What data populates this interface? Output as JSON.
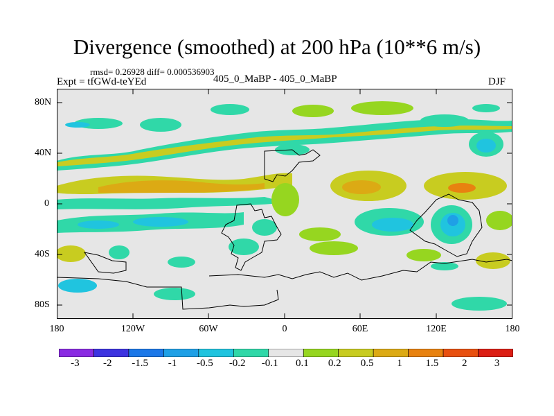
{
  "title": "Divergence (smoothed) at 200 hPa (10**6 m/s)",
  "stats_line": "rmsd= 0.26928  diff= 0.000536903",
  "expt_label": "Expt = tfGWd-teYEd",
  "case_label": "405_0_MaBP - 405_0_MaBP",
  "season_label": "DJF",
  "lat_ticks": [
    {
      "value": 80,
      "label": "80N"
    },
    {
      "value": 40,
      "label": "40N"
    },
    {
      "value": 0,
      "label": "0"
    },
    {
      "value": -40,
      "label": "40S"
    },
    {
      "value": -80,
      "label": "80S"
    }
  ],
  "lon_ticks": [
    {
      "value": -180,
      "label": "180"
    },
    {
      "value": -120,
      "label": "120W"
    },
    {
      "value": -60,
      "label": "60W"
    },
    {
      "value": 0,
      "label": "0"
    },
    {
      "value": 60,
      "label": "60E"
    },
    {
      "value": 120,
      "label": "120E"
    },
    {
      "value": 180,
      "label": "180"
    }
  ],
  "colorbar": {
    "colors": [
      "#8a2be2",
      "#3d33e0",
      "#1c78e8",
      "#1fa0e6",
      "#20c4df",
      "#30d8a8",
      "#e6e6e6",
      "#96d620",
      "#c8cc20",
      "#dcaa14",
      "#e88210",
      "#e85010",
      "#dc1e14"
    ],
    "labels": [
      "-3",
      "-2",
      "-1.5",
      "-1",
      "-0.5",
      "-0.2",
      "-0.1",
      "0.1",
      "0.2",
      "0.5",
      "1",
      "1.5",
      "2",
      "3"
    ]
  }
}
